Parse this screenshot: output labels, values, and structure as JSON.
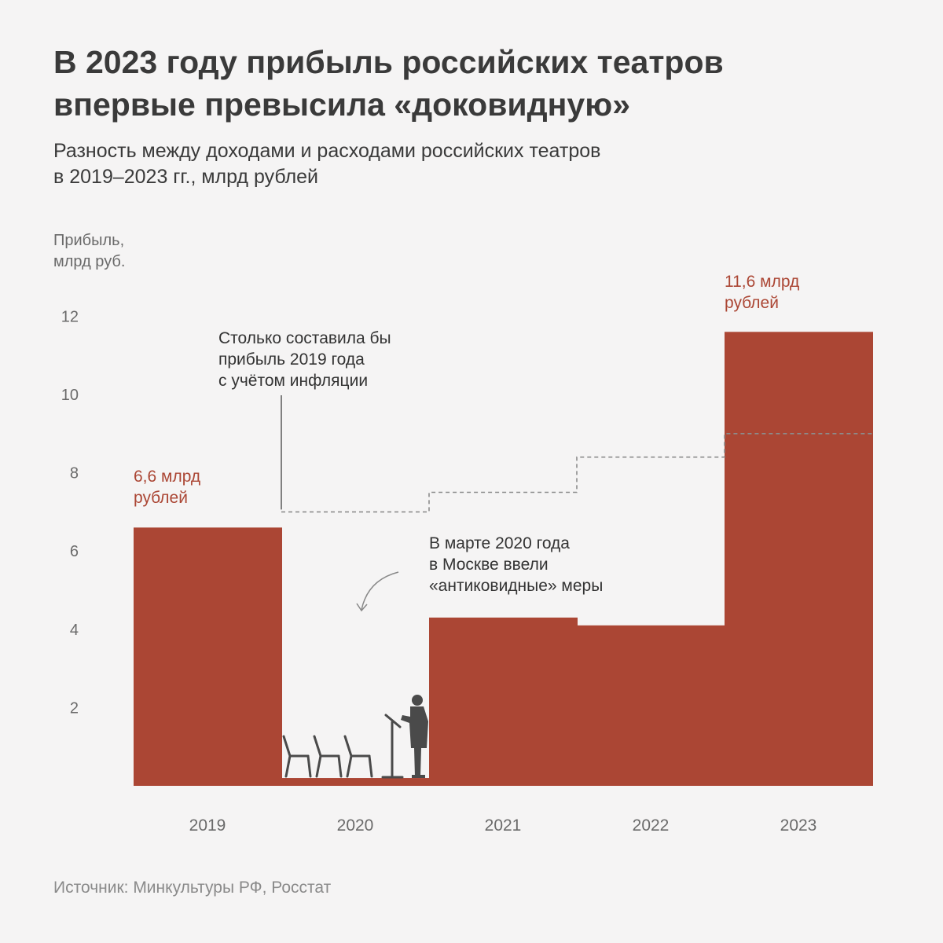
{
  "header": {
    "title_line1": "В 2023 году прибыль российских театров",
    "title_line2": "впервые превысила «доковидную»",
    "subtitle_line1": "Разность между доходами и расходами российских театров",
    "subtitle_line2": "в 2019–2023 гг., млрд рублей"
  },
  "footer": {
    "source": "Источник: Минкультуры РФ, Росстат"
  },
  "chart_data": {
    "type": "bar",
    "ylabel_lines": [
      "Прибыль,",
      "млрд руб."
    ],
    "ylim": [
      0,
      12
    ],
    "yticks": [
      2,
      4,
      6,
      8,
      10,
      12
    ],
    "grid": false,
    "categories": [
      "2019",
      "2020",
      "2021",
      "2022",
      "2023"
    ],
    "series": [
      {
        "values": [
          6.6,
          0.2,
          4.3,
          4.1,
          11.6
        ],
        "color": "#ab4634"
      }
    ],
    "inflation_adjusted_2019": [
      7.0,
      7.5,
      8.4,
      9.0
    ],
    "data_labels": [
      {
        "category": "2019",
        "lines": [
          "6,6 млрд",
          "рублей"
        ]
      },
      {
        "category": "2023",
        "lines": [
          "11,6 млрд",
          "рублей"
        ]
      }
    ],
    "annotations": [
      {
        "lines": [
          "Столько составила бы",
          "прибыль 2019 года",
          "с учётом инфляции"
        ]
      },
      {
        "lines": [
          "В марте 2020 года",
          "в Москве ввели",
          "«антиковидные» меры"
        ]
      }
    ],
    "colors": {
      "bar": "#ab4634",
      "label": "#ab4634",
      "dashed": "#8c8c8c",
      "figure": "#4a4a4a"
    }
  }
}
